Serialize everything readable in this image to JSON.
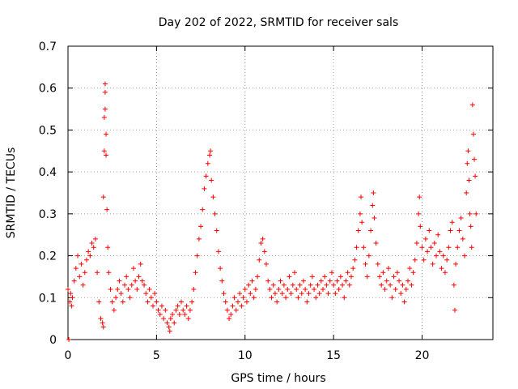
{
  "chart_data": {
    "type": "scatter",
    "title": "Day 202 of 2022, SRMTID for receiver sals",
    "xlabel": "GPS time / hours",
    "ylabel": "SRMTID / TECUs",
    "xlim": [
      0,
      24
    ],
    "ylim": [
      0,
      0.7
    ],
    "xticks": [
      0,
      5,
      10,
      15,
      20
    ],
    "xtick_labels": [
      "0",
      "5",
      "10",
      "15",
      "20"
    ],
    "yticks": [
      0,
      0.1,
      0.2,
      0.3,
      0.4,
      0.5,
      0.6,
      0.7
    ],
    "ytick_labels": [
      "0",
      "0.1",
      "0.2",
      "0.3",
      "0.4",
      "0.5",
      "0.6",
      "0.7"
    ],
    "grid": true,
    "marker": "+",
    "marker_color": "#ff0000",
    "series": [
      {
        "name": "SRMTID",
        "points": [
          [
            0.0,
            0.12
          ],
          [
            0.05,
            0.0
          ],
          [
            0.1,
            0.09
          ],
          [
            0.15,
            0.11
          ],
          [
            0.2,
            0.08
          ],
          [
            0.25,
            0.1
          ],
          [
            0.35,
            0.14
          ],
          [
            0.45,
            0.17
          ],
          [
            0.55,
            0.2
          ],
          [
            0.65,
            0.15
          ],
          [
            0.75,
            0.18
          ],
          [
            0.85,
            0.13
          ],
          [
            0.95,
            0.16
          ],
          [
            1.05,
            0.19
          ],
          [
            1.15,
            0.21
          ],
          [
            1.25,
            0.2
          ],
          [
            1.35,
            0.23
          ],
          [
            1.45,
            0.22
          ],
          [
            1.55,
            0.24
          ],
          [
            1.65,
            0.16
          ],
          [
            1.75,
            0.09
          ],
          [
            1.85,
            0.05
          ],
          [
            1.95,
            0.04
          ],
          [
            2.0,
            0.03
          ],
          [
            2.0,
            0.34
          ],
          [
            2.05,
            0.45
          ],
          [
            2.05,
            0.53
          ],
          [
            2.1,
            0.61
          ],
          [
            2.1,
            0.59
          ],
          [
            2.1,
            0.55
          ],
          [
            2.15,
            0.49
          ],
          [
            2.15,
            0.44
          ],
          [
            2.2,
            0.31
          ],
          [
            2.25,
            0.22
          ],
          [
            2.3,
            0.16
          ],
          [
            2.4,
            0.12
          ],
          [
            2.5,
            0.09
          ],
          [
            2.6,
            0.07
          ],
          [
            2.7,
            0.1
          ],
          [
            2.8,
            0.12
          ],
          [
            2.9,
            0.14
          ],
          [
            3.0,
            0.11
          ],
          [
            3.1,
            0.09
          ],
          [
            3.2,
            0.13
          ],
          [
            3.3,
            0.15
          ],
          [
            3.4,
            0.12
          ],
          [
            3.5,
            0.1
          ],
          [
            3.6,
            0.13
          ],
          [
            3.7,
            0.17
          ],
          [
            3.8,
            0.14
          ],
          [
            3.9,
            0.12
          ],
          [
            4.0,
            0.15
          ],
          [
            4.1,
            0.18
          ],
          [
            4.2,
            0.14
          ],
          [
            4.3,
            0.13
          ],
          [
            4.4,
            0.11
          ],
          [
            4.5,
            0.09
          ],
          [
            4.6,
            0.12
          ],
          [
            4.7,
            0.1
          ],
          [
            4.8,
            0.08
          ],
          [
            4.9,
            0.11
          ],
          [
            5.0,
            0.09
          ],
          [
            5.1,
            0.07
          ],
          [
            5.2,
            0.06
          ],
          [
            5.3,
            0.08
          ],
          [
            5.4,
            0.05
          ],
          [
            5.5,
            0.07
          ],
          [
            5.6,
            0.04
          ],
          [
            5.7,
            0.03
          ],
          [
            5.75,
            0.02
          ],
          [
            5.8,
            0.05
          ],
          [
            5.9,
            0.06
          ],
          [
            6.0,
            0.04
          ],
          [
            6.1,
            0.07
          ],
          [
            6.2,
            0.08
          ],
          [
            6.3,
            0.06
          ],
          [
            6.4,
            0.09
          ],
          [
            6.5,
            0.07
          ],
          [
            6.6,
            0.06
          ],
          [
            6.7,
            0.08
          ],
          [
            6.8,
            0.05
          ],
          [
            6.9,
            0.07
          ],
          [
            7.0,
            0.09
          ],
          [
            7.1,
            0.12
          ],
          [
            7.2,
            0.16
          ],
          [
            7.3,
            0.2
          ],
          [
            7.4,
            0.24
          ],
          [
            7.5,
            0.27
          ],
          [
            7.6,
            0.31
          ],
          [
            7.7,
            0.36
          ],
          [
            7.8,
            0.39
          ],
          [
            7.9,
            0.42
          ],
          [
            8.0,
            0.44
          ],
          [
            8.05,
            0.45
          ],
          [
            8.1,
            0.38
          ],
          [
            8.2,
            0.34
          ],
          [
            8.3,
            0.3
          ],
          [
            8.4,
            0.26
          ],
          [
            8.5,
            0.21
          ],
          [
            8.6,
            0.17
          ],
          [
            8.7,
            0.14
          ],
          [
            8.8,
            0.11
          ],
          [
            8.9,
            0.09
          ],
          [
            9.0,
            0.07
          ],
          [
            9.1,
            0.05
          ],
          [
            9.2,
            0.06
          ],
          [
            9.3,
            0.08
          ],
          [
            9.4,
            0.1
          ],
          [
            9.5,
            0.07
          ],
          [
            9.6,
            0.09
          ],
          [
            9.7,
            0.11
          ],
          [
            9.8,
            0.08
          ],
          [
            9.9,
            0.1
          ],
          [
            10.0,
            0.12
          ],
          [
            10.1,
            0.09
          ],
          [
            10.2,
            0.13
          ],
          [
            10.3,
            0.11
          ],
          [
            10.4,
            0.14
          ],
          [
            10.5,
            0.1
          ],
          [
            10.6,
            0.12
          ],
          [
            10.7,
            0.15
          ],
          [
            10.8,
            0.19
          ],
          [
            10.9,
            0.23
          ],
          [
            11.0,
            0.24
          ],
          [
            11.1,
            0.21
          ],
          [
            11.2,
            0.18
          ],
          [
            11.3,
            0.14
          ],
          [
            11.4,
            0.12
          ],
          [
            11.5,
            0.1
          ],
          [
            11.6,
            0.13
          ],
          [
            11.7,
            0.11
          ],
          [
            11.8,
            0.09
          ],
          [
            11.9,
            0.12
          ],
          [
            12.0,
            0.14
          ],
          [
            12.1,
            0.11
          ],
          [
            12.2,
            0.13
          ],
          [
            12.3,
            0.1
          ],
          [
            12.4,
            0.12
          ],
          [
            12.5,
            0.15
          ],
          [
            12.6,
            0.11
          ],
          [
            12.7,
            0.13
          ],
          [
            12.8,
            0.16
          ],
          [
            12.9,
            0.12
          ],
          [
            13.0,
            0.1
          ],
          [
            13.1,
            0.13
          ],
          [
            13.2,
            0.11
          ],
          [
            13.3,
            0.14
          ],
          [
            13.4,
            0.12
          ],
          [
            13.5,
            0.09
          ],
          [
            13.6,
            0.11
          ],
          [
            13.7,
            0.13
          ],
          [
            13.8,
            0.15
          ],
          [
            13.9,
            0.12
          ],
          [
            14.0,
            0.1
          ],
          [
            14.1,
            0.13
          ],
          [
            14.2,
            0.11
          ],
          [
            14.3,
            0.14
          ],
          [
            14.4,
            0.12
          ],
          [
            14.5,
            0.15
          ],
          [
            14.6,
            0.13
          ],
          [
            14.7,
            0.11
          ],
          [
            14.8,
            0.14
          ],
          [
            14.9,
            0.16
          ],
          [
            15.0,
            0.13
          ],
          [
            15.1,
            0.11
          ],
          [
            15.2,
            0.14
          ],
          [
            15.3,
            0.12
          ],
          [
            15.4,
            0.15
          ],
          [
            15.5,
            0.13
          ],
          [
            15.6,
            0.1
          ],
          [
            15.7,
            0.14
          ],
          [
            15.8,
            0.16
          ],
          [
            15.9,
            0.13
          ],
          [
            16.0,
            0.15
          ],
          [
            16.1,
            0.17
          ],
          [
            16.2,
            0.19
          ],
          [
            16.3,
            0.22
          ],
          [
            16.4,
            0.26
          ],
          [
            16.5,
            0.3
          ],
          [
            16.55,
            0.34
          ],
          [
            16.6,
            0.28
          ],
          [
            16.7,
            0.22
          ],
          [
            16.8,
            0.18
          ],
          [
            16.9,
            0.15
          ],
          [
            17.0,
            0.2
          ],
          [
            17.1,
            0.26
          ],
          [
            17.2,
            0.32
          ],
          [
            17.25,
            0.35
          ],
          [
            17.3,
            0.29
          ],
          [
            17.4,
            0.23
          ],
          [
            17.5,
            0.18
          ],
          [
            17.6,
            0.15
          ],
          [
            17.7,
            0.13
          ],
          [
            17.8,
            0.16
          ],
          [
            17.9,
            0.12
          ],
          [
            18.0,
            0.14
          ],
          [
            18.1,
            0.17
          ],
          [
            18.2,
            0.13
          ],
          [
            18.3,
            0.1
          ],
          [
            18.4,
            0.15
          ],
          [
            18.5,
            0.12
          ],
          [
            18.6,
            0.16
          ],
          [
            18.7,
            0.14
          ],
          [
            18.8,
            0.11
          ],
          [
            18.9,
            0.13
          ],
          [
            19.0,
            0.09
          ],
          [
            19.1,
            0.12
          ],
          [
            19.2,
            0.14
          ],
          [
            19.3,
            0.17
          ],
          [
            19.4,
            0.13
          ],
          [
            19.5,
            0.16
          ],
          [
            19.6,
            0.19
          ],
          [
            19.7,
            0.23
          ],
          [
            19.8,
            0.3
          ],
          [
            19.85,
            0.34
          ],
          [
            19.9,
            0.27
          ],
          [
            20.0,
            0.22
          ],
          [
            20.1,
            0.19
          ],
          [
            20.2,
            0.24
          ],
          [
            20.3,
            0.21
          ],
          [
            20.4,
            0.26
          ],
          [
            20.5,
            0.22
          ],
          [
            20.6,
            0.18
          ],
          [
            20.7,
            0.23
          ],
          [
            20.8,
            0.2
          ],
          [
            20.9,
            0.25
          ],
          [
            21.0,
            0.21
          ],
          [
            21.1,
            0.17
          ],
          [
            21.2,
            0.2
          ],
          [
            21.3,
            0.16
          ],
          [
            21.4,
            0.19
          ],
          [
            21.5,
            0.22
          ],
          [
            21.6,
            0.26
          ],
          [
            21.7,
            0.28
          ],
          [
            21.8,
            0.13
          ],
          [
            21.85,
            0.07
          ],
          [
            21.9,
            0.18
          ],
          [
            22.0,
            0.22
          ],
          [
            22.1,
            0.26
          ],
          [
            22.2,
            0.29
          ],
          [
            22.3,
            0.24
          ],
          [
            22.4,
            0.2
          ],
          [
            22.5,
            0.35
          ],
          [
            22.55,
            0.42
          ],
          [
            22.6,
            0.45
          ],
          [
            22.65,
            0.38
          ],
          [
            22.7,
            0.3
          ],
          [
            22.75,
            0.27
          ],
          [
            22.8,
            0.22
          ],
          [
            22.85,
            0.56
          ],
          [
            22.9,
            0.49
          ],
          [
            22.95,
            0.43
          ],
          [
            23.0,
            0.39
          ],
          [
            23.05,
            0.3
          ]
        ]
      }
    ]
  }
}
